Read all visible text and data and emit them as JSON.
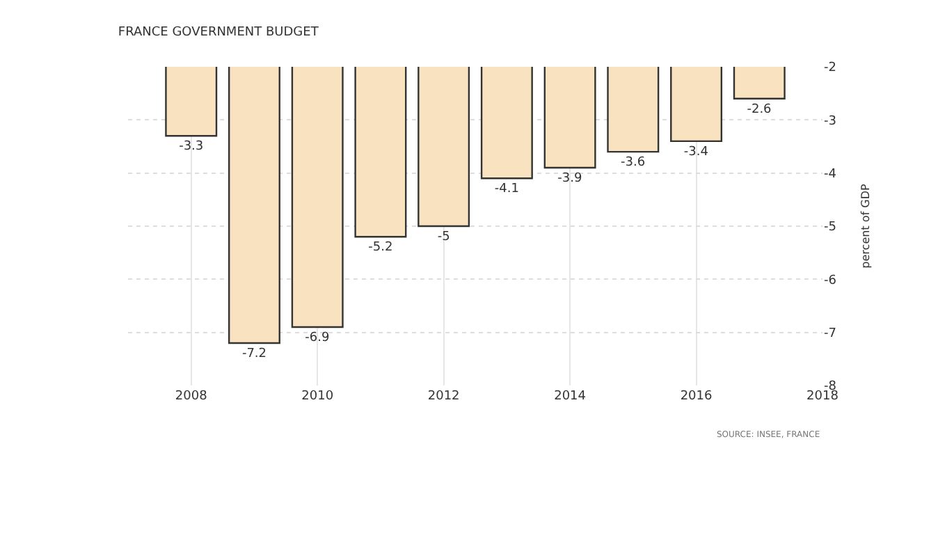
{
  "chart_data": {
    "type": "bar",
    "title": "FRANCE GOVERNMENT BUDGET",
    "ylabel": "percent of GDP",
    "x": [
      2008,
      2009,
      2010,
      2011,
      2012,
      2013,
      2014,
      2015,
      2016,
      2017
    ],
    "values": [
      -3.3,
      -7.2,
      -6.9,
      -5.2,
      -5,
      -4.1,
      -3.9,
      -3.6,
      -3.4,
      -2.6
    ],
    "color": "#f8e2bf",
    "xlim": [
      2007,
      2018
    ],
    "xticks": [
      2008,
      2010,
      2012,
      2014,
      2016,
      2018
    ],
    "ylim": [
      -8,
      -2
    ],
    "yticks": [
      -8,
      -7,
      -6,
      -5,
      -4,
      -3,
      -2
    ],
    "grid": true,
    "data_labels": true,
    "annotations": [
      "SOURCE: INSEE, FRANCE"
    ]
  }
}
